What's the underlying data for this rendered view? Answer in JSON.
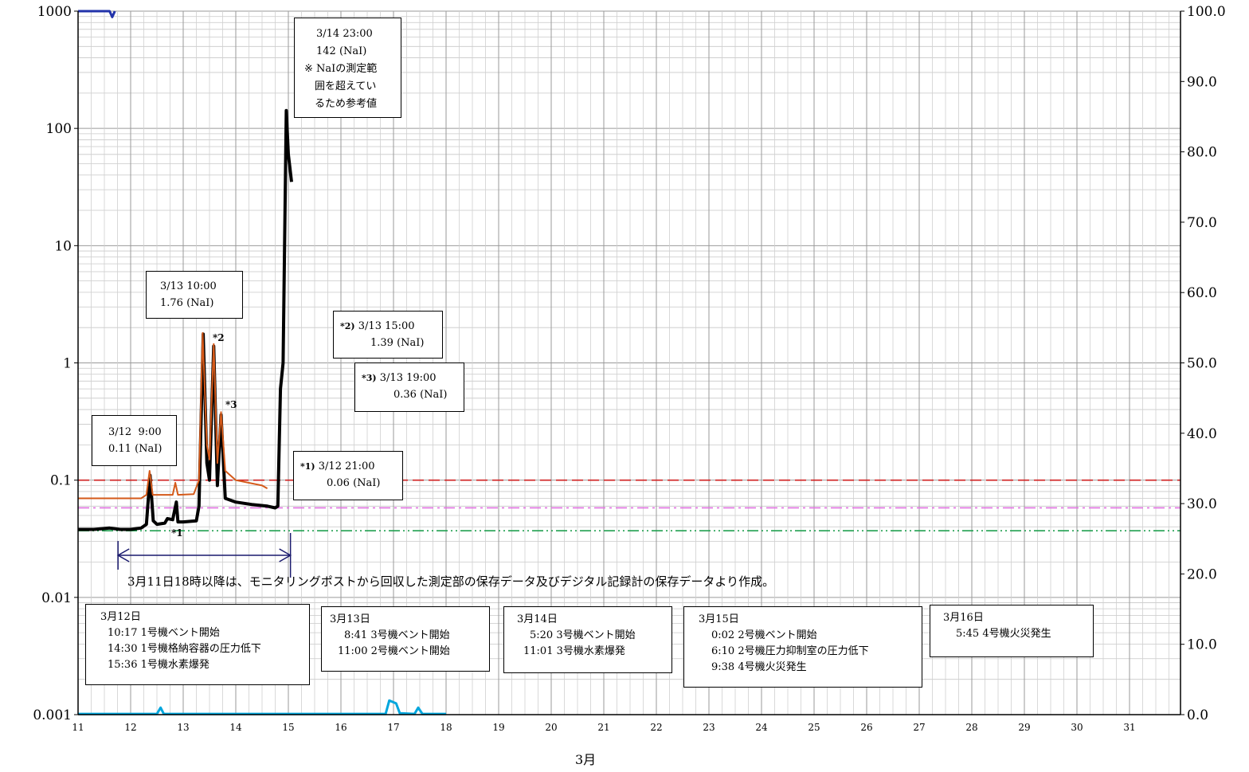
{
  "chart_data": {
    "type": "line",
    "xlabel": "3月",
    "x_ticks": [
      "11",
      "12",
      "13",
      "14",
      "15",
      "16",
      "17",
      "18",
      "19",
      "20",
      "21",
      "22",
      "23",
      "24",
      "25",
      "26",
      "27",
      "28",
      "29",
      "30",
      "31"
    ],
    "y_left": {
      "scale": "log",
      "ylim": [
        0.001,
        1000
      ],
      "ticks": [
        "0.001",
        "0.01",
        "0.1",
        "1",
        "10",
        "100",
        "1000"
      ]
    },
    "y_right": {
      "scale": "linear",
      "ylim": [
        0,
        100
      ],
      "ticks": [
        "0.0",
        "10.0",
        "20.0",
        "30.0",
        "40.0",
        "50.0",
        "60.0",
        "70.0",
        "80.0",
        "90.0",
        "100.0"
      ]
    },
    "grid": true,
    "series": [
      {
        "color": "#000000",
        "axis": "left",
        "points": [
          [
            11,
            0.038
          ],
          [
            11.3,
            0.038
          ],
          [
            11.6,
            0.039
          ],
          [
            11.8,
            0.038
          ],
          [
            12.0,
            0.038
          ],
          [
            12.2,
            0.039
          ],
          [
            12.3,
            0.042
          ],
          [
            12.37,
            0.11
          ],
          [
            12.43,
            0.045
          ],
          [
            12.5,
            0.042
          ],
          [
            12.65,
            0.043
          ],
          [
            12.7,
            0.047
          ],
          [
            12.8,
            0.046
          ],
          [
            12.87,
            0.065
          ],
          [
            12.9,
            0.044
          ],
          [
            13.0,
            0.044
          ],
          [
            13.25,
            0.045
          ],
          [
            13.3,
            0.06
          ],
          [
            13.38,
            1.76
          ],
          [
            13.45,
            0.14
          ],
          [
            13.5,
            0.1
          ],
          [
            13.58,
            1.39
          ],
          [
            13.65,
            0.09
          ],
          [
            13.72,
            0.36
          ],
          [
            13.8,
            0.07
          ],
          [
            14.0,
            0.065
          ],
          [
            14.3,
            0.062
          ],
          [
            14.6,
            0.06
          ],
          [
            14.75,
            0.058
          ],
          [
            14.8,
            0.06
          ],
          [
            14.85,
            0.6
          ],
          [
            14.9,
            1.0
          ],
          [
            14.96,
            142
          ],
          [
            15.0,
            60
          ],
          [
            15.06,
            35
          ]
        ]
      },
      {
        "color": "#d45a1a",
        "axis": "left",
        "points": [
          [
            11,
            0.07
          ],
          [
            12.2,
            0.07
          ],
          [
            12.3,
            0.075
          ],
          [
            12.36,
            0.12
          ],
          [
            12.42,
            0.075
          ],
          [
            12.8,
            0.075
          ],
          [
            12.85,
            0.095
          ],
          [
            12.9,
            0.075
          ],
          [
            13.2,
            0.076
          ],
          [
            13.3,
            0.1
          ],
          [
            13.37,
            1.8
          ],
          [
            13.45,
            0.2
          ],
          [
            13.5,
            0.15
          ],
          [
            13.58,
            1.45
          ],
          [
            13.65,
            0.14
          ],
          [
            13.72,
            0.38
          ],
          [
            13.8,
            0.12
          ],
          [
            14.0,
            0.1
          ],
          [
            14.5,
            0.09
          ],
          [
            14.6,
            0.085
          ]
        ]
      },
      {
        "color": "#00a6dd",
        "axis": "right",
        "points": [
          [
            11,
            0.1
          ],
          [
            12.5,
            0.1
          ],
          [
            12.57,
            1.0
          ],
          [
            12.63,
            0.1
          ],
          [
            16.85,
            0.1
          ],
          [
            16.92,
            2.0
          ],
          [
            17.05,
            1.6
          ],
          [
            17.12,
            0.2
          ],
          [
            17.4,
            0.1
          ],
          [
            17.47,
            1.0
          ],
          [
            17.55,
            0.1
          ],
          [
            18.0,
            0.1
          ]
        ]
      },
      {
        "color": "#2233aa",
        "axis": "left",
        "points": [
          [
            11,
            1000
          ],
          [
            11.6,
            1000
          ],
          [
            11.65,
            890
          ],
          [
            11.7,
            1000
          ]
        ]
      }
    ],
    "reference_lines": [
      {
        "color": "#d02020",
        "style": "dashed",
        "y": 0.1
      },
      {
        "color": "#e070e0",
        "style": "dash-dot",
        "y": 0.058
      },
      {
        "color": "#20a050",
        "style": "dash-dot-dot",
        "y": 0.037
      }
    ],
    "annotations": [
      {
        "id": "a1",
        "lines": [
          "3/12  9:00",
          "0.11 (NaI)"
        ]
      },
      {
        "id": "a2",
        "lines": [
          "3/13 10:00",
          "1.76 (NaI)"
        ]
      },
      {
        "id": "a3",
        "lines": [
          "3/14 23:00",
          "142 (NaI)",
          "※ NaIの測定範",
          "　囲を超えてい",
          "　るため参考値"
        ]
      },
      {
        "id": "a4",
        "mark": "*2)",
        "lines": [
          "3/13 15:00",
          "1.39 (NaI)"
        ]
      },
      {
        "id": "a5",
        "mark": "*3)",
        "lines": [
          "3/13 19:00",
          "0.36 (NaI)"
        ]
      },
      {
        "id": "a6",
        "mark": "*1)",
        "lines": [
          "3/12 21:00",
          "0.06 (NaI)"
        ]
      }
    ],
    "markers": [
      "*1",
      "*2",
      "*3"
    ],
    "note": "3月11日18時以降は、モニタリングポストから回収した測定部の保存データ及びデジタル記録計の保存データより作成。",
    "events": [
      {
        "title": "3月12日",
        "items": [
          "10:17 1号機ベント開始",
          "14:30 1号機格納容器の圧力低下",
          "15:36 1号機水素爆発"
        ]
      },
      {
        "title": "3月13日",
        "items": [
          "8:41 3号機ベント開始",
          "11:00 2号機ベント開始"
        ]
      },
      {
        "title": "3月14日",
        "items": [
          "5:20 3号機ベント開始",
          "11:01 3号機水素爆発"
        ]
      },
      {
        "title": "3月15日",
        "items": [
          "0:02 2号機ベント開始",
          "6:10 2号機圧力抑制室の圧力低下",
          "9:38 4号機火災発生"
        ]
      },
      {
        "title": "3月16日",
        "items": [
          "5:45 4号機火災発生"
        ]
      }
    ]
  }
}
